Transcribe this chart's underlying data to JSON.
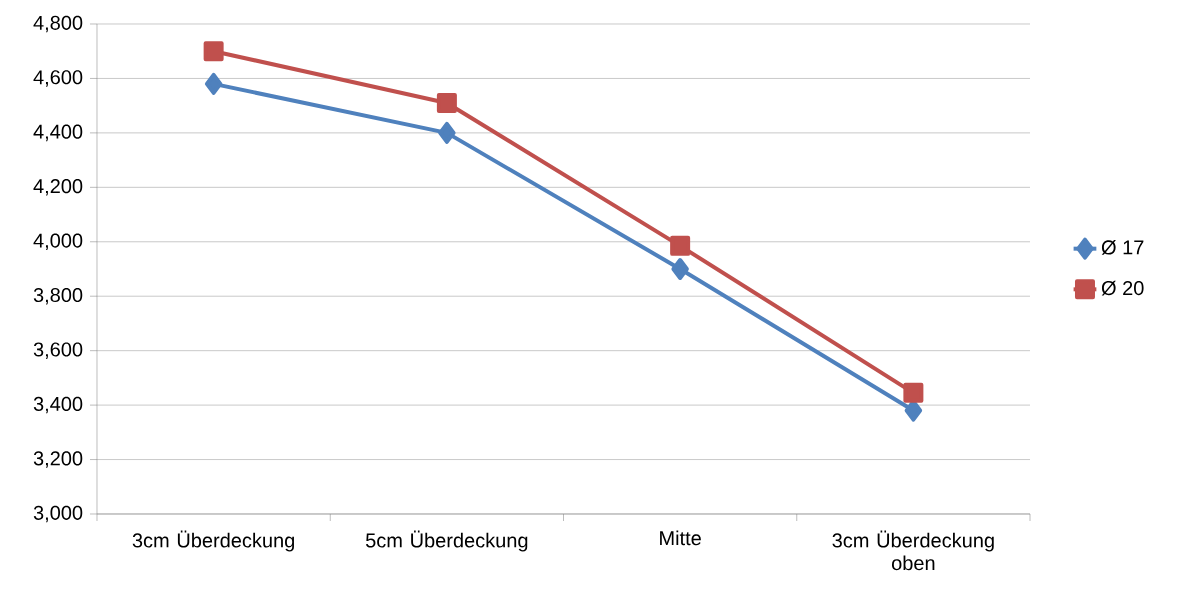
{
  "chart_data": {
    "type": "line",
    "categories": [
      "3cm Überdeckung",
      "5cm Überdeckung",
      "Mitte",
      "3cm Überdeckung oben"
    ],
    "series": [
      {
        "name": "Ø 17",
        "color": "#4f81bd",
        "marker": "diamond",
        "values": [
          4580,
          4400,
          3900,
          3380
        ]
      },
      {
        "name": "Ø 20",
        "color": "#c0504d",
        "marker": "square",
        "values": [
          4700,
          4510,
          3985,
          3445
        ]
      }
    ],
    "ylim": [
      3000,
      4800
    ],
    "yticks": [
      {
        "value": 3000,
        "label": "3,000"
      },
      {
        "value": 3200,
        "label": "3,200"
      },
      {
        "value": 3400,
        "label": "3,400"
      },
      {
        "value": 3600,
        "label": "3,600"
      },
      {
        "value": 3800,
        "label": "3,800"
      },
      {
        "value": 4000,
        "label": "4,000"
      },
      {
        "value": 4200,
        "label": "4,200"
      },
      {
        "value": 4400,
        "label": "4,400"
      },
      {
        "value": 4600,
        "label": "4,600"
      },
      {
        "value": 4800,
        "label": "4,800"
      }
    ],
    "grid": "y",
    "legend": "right",
    "line_style": "solid"
  }
}
